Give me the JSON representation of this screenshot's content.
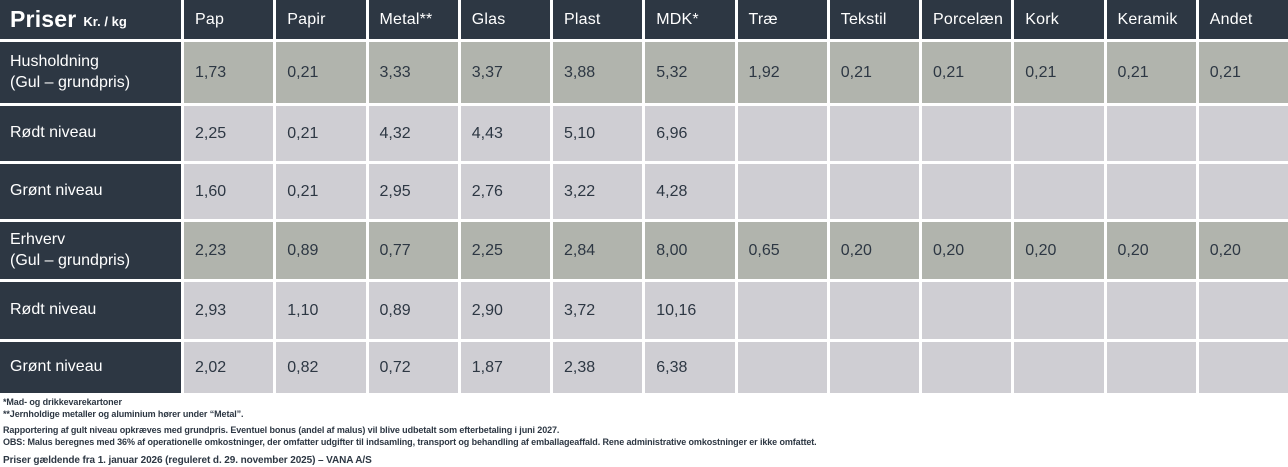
{
  "colors": {
    "header_and_labels": "#2d3743",
    "grundpris_row_cells": "#b1b4ad",
    "niveau_row_cells": "#cfced3",
    "grid_gap": "#ffffff",
    "header_text": "#ffffff"
  },
  "title": {
    "main": "Priser",
    "unit": "Kr. / kg"
  },
  "chart_data": {
    "type": "table",
    "title": "Priser",
    "unit": "Kr. / kg",
    "columns": [
      "Pap",
      "Papir",
      "Metal**",
      "Glas",
      "Plast",
      "MDK*",
      "Træ",
      "Tekstil",
      "Porcelæn",
      "Kork",
      "Keramik",
      "Andet"
    ],
    "rows": [
      {
        "label": "Husholdning",
        "sublabel": "(Gul – grundpris)",
        "highlight": true,
        "values": [
          "1,73",
          "0,21",
          "3,33",
          "3,37",
          "3,88",
          "5,32",
          "1,92",
          "0,21",
          "0,21",
          "0,21",
          "0,21",
          "0,21"
        ]
      },
      {
        "label": "Rødt niveau",
        "sublabel": "",
        "highlight": false,
        "values": [
          "2,25",
          "0,21",
          "4,32",
          "4,43",
          "5,10",
          "6,96",
          "",
          "",
          "",
          "",
          "",
          ""
        ]
      },
      {
        "label": "Grønt niveau",
        "sublabel": "",
        "highlight": false,
        "values": [
          "1,60",
          "0,21",
          "2,95",
          "2,76",
          "3,22",
          "4,28",
          "",
          "",
          "",
          "",
          "",
          ""
        ]
      },
      {
        "label": "Erhverv",
        "sublabel": "(Gul – grundpris)",
        "highlight": true,
        "values": [
          "2,23",
          "0,89",
          "0,77",
          "2,25",
          "2,84",
          "8,00",
          "0,65",
          "0,20",
          "0,20",
          "0,20",
          "0,20",
          "0,20"
        ]
      },
      {
        "label": "Rødt niveau",
        "sublabel": "",
        "highlight": false,
        "values": [
          "2,93",
          "1,10",
          "0,89",
          "2,90",
          "3,72",
          "10,16",
          "",
          "",
          "",
          "",
          "",
          ""
        ]
      },
      {
        "label": "Grønt niveau",
        "sublabel": "",
        "highlight": false,
        "values": [
          "2,02",
          "0,82",
          "0,72",
          "1,87",
          "2,38",
          "6,38",
          "",
          "",
          "",
          "",
          "",
          ""
        ]
      }
    ]
  },
  "footnotes": [
    "*Mad- og drikkevarekartoner",
    "**Jernholdige metaller og aluminium hører under “Metal”.",
    "Rapportering af gult niveau opkræves med grundpris. Eventuel bonus (andel af malus) vil blive udbetalt som efterbetaling i juni 2027.",
    "OBS: Malus beregnes med 36% af operationelle omkostninger, der omfatter udgifter til indsamling, transport og behandling af emballageaffald. Rene administrative omkostninger er ikke omfattet.",
    "Priser gældende fra 1. januar 2026 (reguleret d. 29. november 2025) – VANA A/S"
  ]
}
